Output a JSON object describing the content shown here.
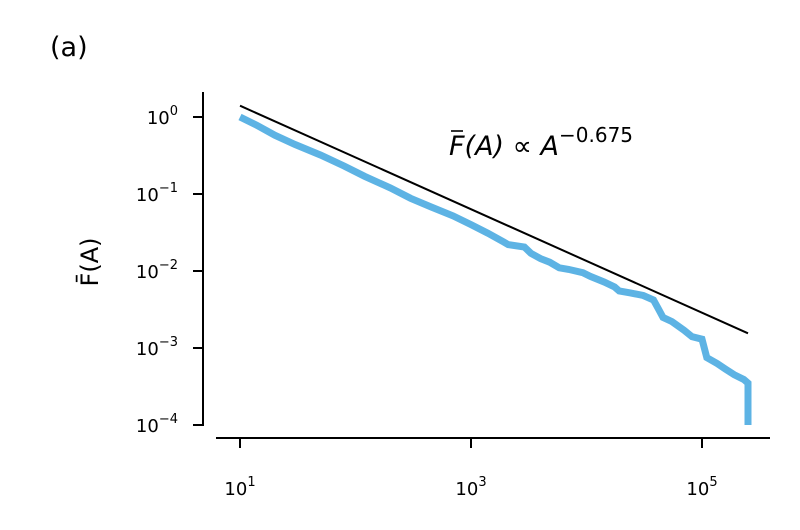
{
  "panel_label": "(a)",
  "colors": {
    "data_line": "#5DB3E4",
    "fit_line": "#000000",
    "axes": "#000000"
  },
  "chart_data": {
    "type": "line",
    "panel": "(a)",
    "xscale": "log",
    "yscale": "log",
    "xlim": [
      6.3,
      1000000
    ],
    "ylim": [
      7.5e-05,
      2.0
    ],
    "grid": false,
    "legend": "none",
    "ylabel": "F̄(A)",
    "xlabel": "",
    "x_ticks": [
      {
        "value": 10,
        "base": "10",
        "exp": "1"
      },
      {
        "value": 1000,
        "base": "10",
        "exp": "3"
      },
      {
        "value": 100000,
        "base": "10",
        "exp": "5"
      }
    ],
    "y_ticks": [
      {
        "value": 1,
        "base": "10",
        "exp": "0"
      },
      {
        "value": 0.1,
        "base": "10",
        "exp": "−1"
      },
      {
        "value": 0.01,
        "base": "10",
        "exp": "−2"
      },
      {
        "value": 0.001,
        "base": "10",
        "exp": "−3"
      },
      {
        "value": 0.0001,
        "base": "10",
        "exp": "−4"
      }
    ],
    "annotation": {
      "lhs": "F(A)",
      "rel": " ∝ A",
      "exponent": "−0.675"
    },
    "series": [
      {
        "role": "empirical",
        "x": [
          10,
          14,
          20,
          30,
          50,
          80,
          120,
          200,
          300,
          450,
          700,
          1000,
          1400,
          1900,
          2100,
          2900,
          3300,
          4000,
          4800,
          5800,
          7000,
          9300,
          10800,
          14200,
          17500,
          19200,
          24000,
          31000,
          38000,
          42000,
          46000,
          55000,
          70000,
          82000,
          100000,
          110000,
          135000,
          160000,
          190000,
          230000,
          250000,
          250000
        ],
        "y": [
          1.0,
          0.78,
          0.58,
          0.44,
          0.32,
          0.23,
          0.17,
          0.12,
          0.088,
          0.068,
          0.052,
          0.04,
          0.031,
          0.024,
          0.022,
          0.0205,
          0.017,
          0.0145,
          0.013,
          0.011,
          0.0105,
          0.0095,
          0.0085,
          0.0072,
          0.0062,
          0.0055,
          0.0052,
          0.0048,
          0.0042,
          0.0032,
          0.0025,
          0.0022,
          0.0017,
          0.0014,
          0.0013,
          0.00075,
          0.00063,
          0.00053,
          0.00045,
          0.00039,
          0.00035,
          0.0001
        ]
      },
      {
        "role": "fit",
        "x": [
          10,
          250000
        ],
        "y": [
          1.4,
          0.00155
        ]
      }
    ]
  }
}
